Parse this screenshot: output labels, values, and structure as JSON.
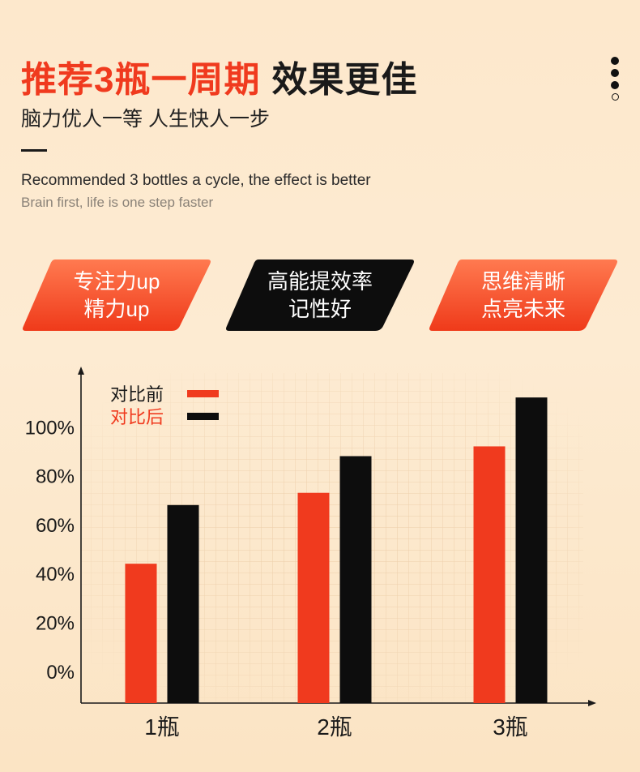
{
  "header": {
    "title_red": "推荐3瓶一周期",
    "title_dark": "效果更佳",
    "subtitle": "脑力优人一等 人生快人一步",
    "en_title": "Recommended 3 bottles a cycle, the effect is better",
    "en_subtitle": "Brain first, life is one step faster"
  },
  "badges": [
    {
      "line1": "专注力up",
      "line2": "精力up",
      "style": "orange"
    },
    {
      "line1": "高能提效率",
      "line2": "记性好",
      "style": "black"
    },
    {
      "line1": "思维清晰",
      "line2": "点亮未来",
      "style": "orange"
    }
  ],
  "colors": {
    "accent": "#f03a1e",
    "dark": "#0d0d0d",
    "background": "#fde8cc"
  },
  "chart_data": {
    "type": "bar",
    "categories": [
      "1瓶",
      "2瓶",
      "3瓶"
    ],
    "series": [
      {
        "name": "对比前",
        "values": [
          44,
          73,
          92
        ],
        "color": "#f03a1e"
      },
      {
        "name": "对比后",
        "values": [
          68,
          88,
          112
        ],
        "color": "#0d0d0d"
      }
    ],
    "y_ticks": [
      "0%",
      "20%",
      "40%",
      "60%",
      "80%",
      "100%"
    ],
    "y_tick_values": [
      0,
      20,
      40,
      60,
      80,
      100
    ],
    "ylim": [
      -13,
      122
    ],
    "grid": true,
    "legend_position": "top-left"
  }
}
